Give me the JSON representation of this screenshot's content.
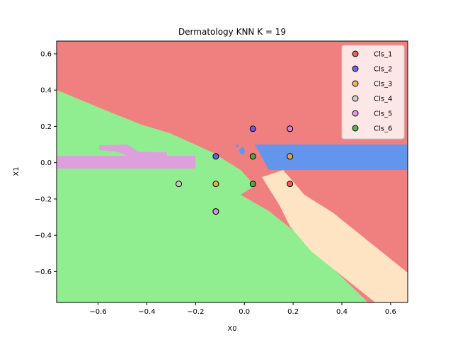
{
  "chart_data": {
    "type": "scatter",
    "title": "Dermatology KNN K = 19",
    "xlabel": "X0",
    "ylabel": "X1",
    "xlim": [
      -0.77,
      0.67
    ],
    "ylim": [
      -0.77,
      0.67
    ],
    "xticks": [
      -0.6,
      -0.4,
      -0.2,
      0.0,
      0.2,
      0.4,
      0.6
    ],
    "xtick_labels": [
      "−0.6",
      "−0.4",
      "−0.2",
      "0.0",
      "0.2",
      "0.4",
      "0.6"
    ],
    "yticks": [
      -0.6,
      -0.4,
      -0.2,
      0.0,
      0.2,
      0.4,
      0.6
    ],
    "ytick_labels": [
      "−0.6",
      "−0.4",
      "−0.2",
      "0.0",
      "0.2",
      "0.4",
      "0.6"
    ],
    "grid": false,
    "legend_position": "top-right",
    "series": [
      {
        "name": "Cls_1",
        "color": "#e8474a",
        "points": [
          [
            0.187,
            0.187
          ],
          [
            0.187,
            -0.117
          ]
        ]
      },
      {
        "name": "Cls_2",
        "color": "#5a4cf0",
        "points": [
          [
            0.035,
            0.187
          ],
          [
            -0.117,
            0.035
          ]
        ]
      },
      {
        "name": "Cls_3",
        "color": "#f5a93a",
        "points": [
          [
            0.187,
            0.035
          ],
          [
            -0.117,
            -0.117
          ]
        ]
      },
      {
        "name": "Cls_4",
        "color": "#c8c8c8",
        "points": [
          [
            -0.117,
            -0.269
          ],
          [
            -0.269,
            -0.117
          ]
        ]
      },
      {
        "name": "Cls_5",
        "color": "#dd88dd",
        "points": [
          [
            0.187,
            0.187
          ],
          [
            -0.117,
            -0.269
          ]
        ]
      },
      {
        "name": "Cls_6",
        "color": "#3aa83a",
        "points": [
          [
            0.035,
            0.035
          ],
          [
            0.035,
            -0.117
          ]
        ]
      }
    ],
    "regions": {
      "Cls_1": "#f08080",
      "Cls_2": "#6495ed",
      "Cls_4": "#ffe4c4",
      "Cls_5": "#dda0dd",
      "Cls_6": "#90ee90"
    }
  }
}
